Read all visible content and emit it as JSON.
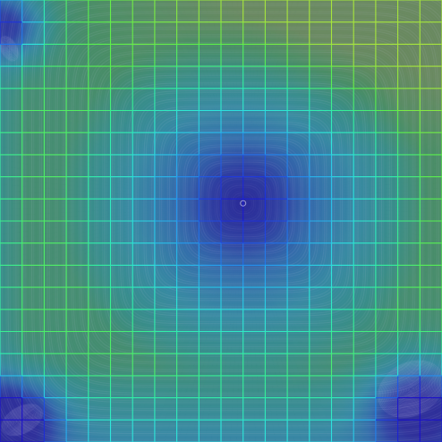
{
  "visualization": {
    "kind": "flow-field-streamlines-with-grid",
    "description_visible_text": "",
    "colormap": [
      "#1a10c8",
      "#1f3fe0",
      "#26a6f0",
      "#2ee6dc",
      "#32f0a0",
      "#5cf04a",
      "#a6e63c"
    ],
    "background_tint": "#3a5080",
    "streamline_color": "#c8c8e6",
    "grid": {
      "columns": 20,
      "rows": 20,
      "shown": true
    },
    "vortex": {
      "primary": "center",
      "secondary": [
        "bottom-right",
        "bottom-left",
        "top-left"
      ]
    }
  }
}
